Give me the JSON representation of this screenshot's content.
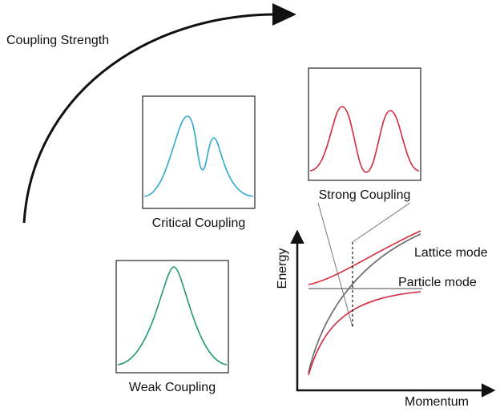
{
  "title": "Coupling Strength",
  "panels": [
    {
      "label": "Critical Coupling"
    },
    {
      "label": "Strong Coupling"
    },
    {
      "label": "Weak Coupling"
    }
  ],
  "dispersion": {
    "y_axis_label": "Energy",
    "x_axis_label": "Momentum",
    "modes": [
      "Lattice mode",
      "Particle mode"
    ]
  }
}
